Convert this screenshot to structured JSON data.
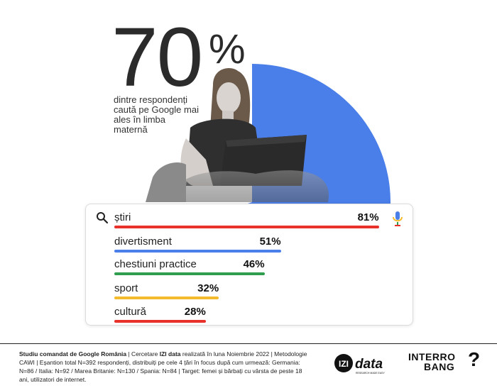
{
  "headline": {
    "number": "70",
    "percent": "%",
    "description": "dintre respondenți caută pe Google mai ales în limba maternă"
  },
  "colors": {
    "pie_blue": "#4a7ee8",
    "bar_red": "#e8312a",
    "bar_blue": "#4a7ee8",
    "bar_green": "#2f9e4f",
    "bar_yellow": "#f4bb2e",
    "text_dark": "#222222"
  },
  "icons": {
    "search": "search-icon",
    "mic": "microphone-icon"
  },
  "chart_data": [
    {
      "type": "pie",
      "slices": [
        {
          "value": 70
        },
        {
          "value": 30
        }
      ],
      "title": "",
      "annotation": "70%"
    },
    {
      "type": "bar",
      "orientation": "horizontal",
      "categories": [
        "știri",
        "divertisment",
        "chestiuni practice",
        "sport",
        "cultură"
      ],
      "values": [
        81,
        51,
        46,
        32,
        28
      ],
      "value_labels": [
        "81%",
        "51%",
        "46%",
        "32%",
        "28%"
      ],
      "bar_colors": [
        "#e8312a",
        "#4a7ee8",
        "#2f9e4f",
        "#f4bb2e",
        "#e8312a"
      ],
      "xlim": [
        0,
        100
      ]
    }
  ],
  "footer": {
    "part1_bold": "Studiu comandat de Google România",
    "part2": " | Cercetare ",
    "part3_bold": "IZI data",
    "part4": " realizată în luna Noiembrie 2022 | Metodologie CAWI | Eșantion total N=392 respondenți, distribuiți pe cele 4 țări în focus după cum urmează: Germania: N=86 / Italia: N=92 / Marea Britanie: N=130 / Spania: N=84 | Target: femei și bărbați cu vârsta de peste 18 ani, utilizatori de internet."
  },
  "logos": {
    "izi_mark": "IZI",
    "izi_word": "data",
    "izi_tagline": "RESEARCH MADE EASY",
    "interrobang_line1": "INTERRO",
    "interrobang_line2": "BANG",
    "interrobang_mark": "?"
  }
}
